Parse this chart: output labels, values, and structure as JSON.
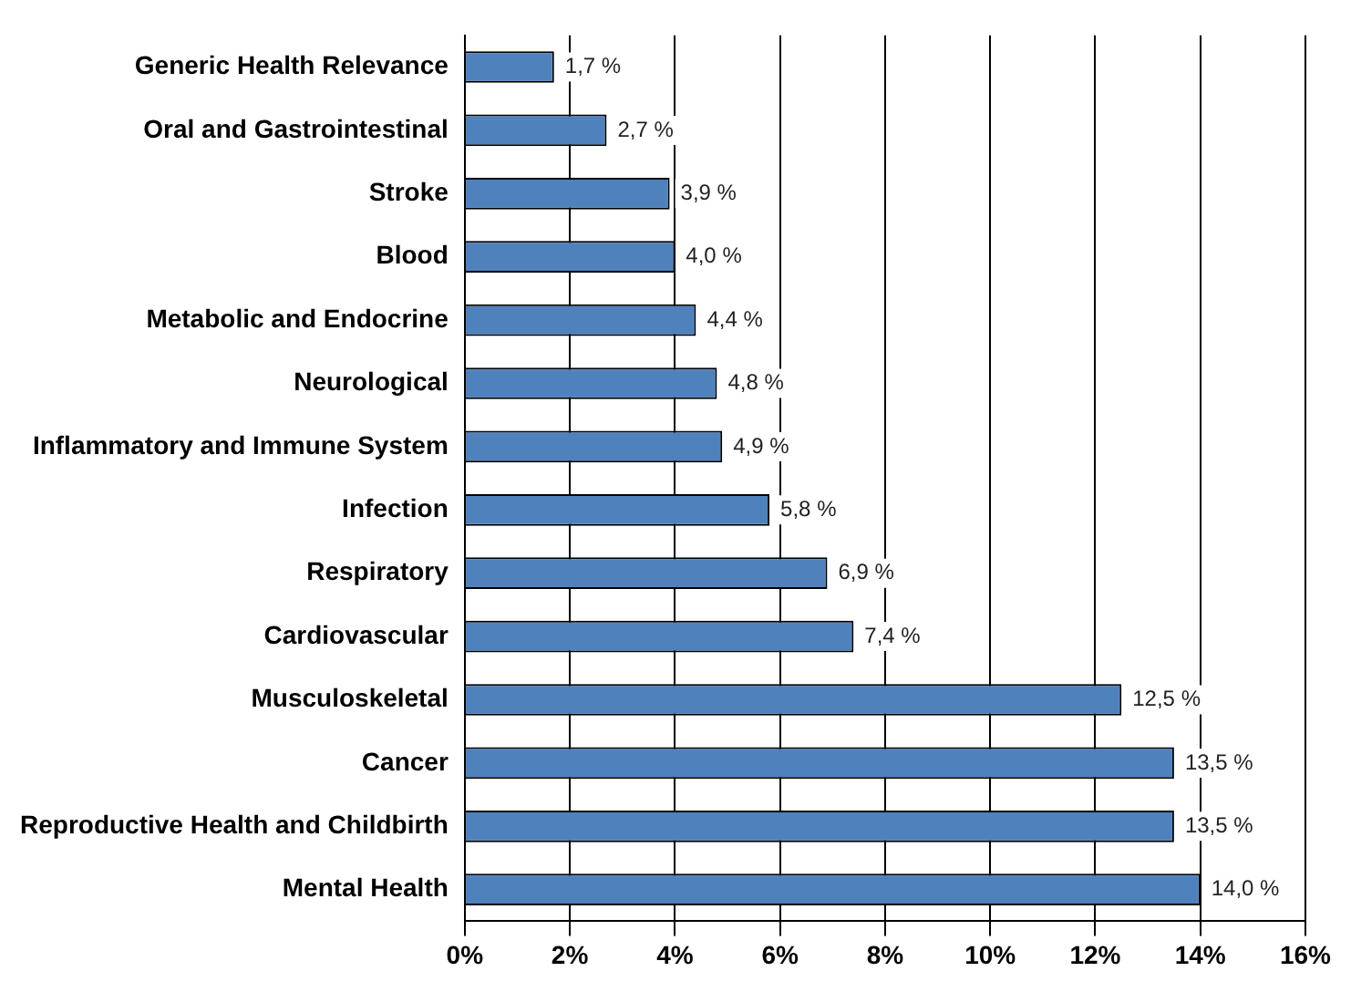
{
  "chart_data": {
    "type": "bar",
    "orientation": "horizontal",
    "categories": [
      "Generic Health Relevance",
      "Oral and Gastrointestinal",
      "Stroke",
      "Blood",
      "Metabolic and Endocrine",
      "Neurological",
      "Inflammatory and Immune System",
      "Infection",
      "Respiratory",
      "Cardiovascular",
      "Musculoskeletal",
      "Cancer",
      "Reproductive Health and Childbirth",
      "Mental Health"
    ],
    "values": [
      1.7,
      2.7,
      3.9,
      4.0,
      4.4,
      4.8,
      4.9,
      5.8,
      6.9,
      7.4,
      12.5,
      13.5,
      13.5,
      14.0
    ],
    "value_labels": [
      "1,7 %",
      "2,7 %",
      "3,9 %",
      "4,0 %",
      "4,4 %",
      "4,8 %",
      "4,9 %",
      "5,8 %",
      "6,9 %",
      "7,4 %",
      "12,5 %",
      "13,5 %",
      "13,5 %",
      "14,0 %"
    ],
    "color": "#4f81bd",
    "xlim": [
      0,
      16
    ],
    "xticks": [
      {
        "value": 0,
        "label": "0%"
      },
      {
        "value": 2,
        "label": "2%"
      },
      {
        "value": 4,
        "label": "4%"
      },
      {
        "value": 6,
        "label": "6%"
      },
      {
        "value": 8,
        "label": "8%"
      },
      {
        "value": 10,
        "label": "10%"
      },
      {
        "value": 12,
        "label": "12%"
      },
      {
        "value": 14,
        "label": "14%"
      },
      {
        "value": 16,
        "label": "16%"
      }
    ],
    "grid": "x",
    "legend": false
  }
}
